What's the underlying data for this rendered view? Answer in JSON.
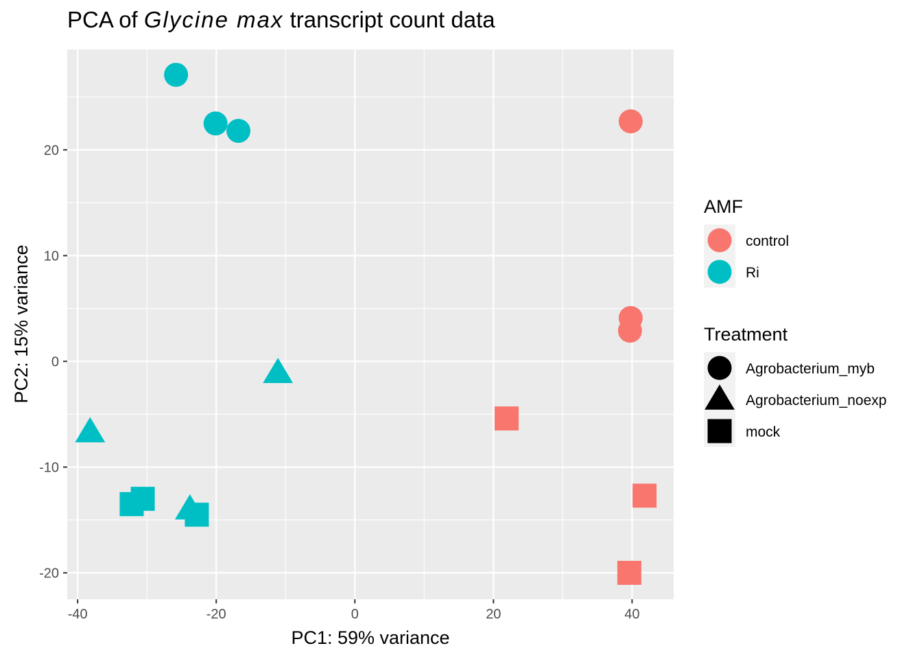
{
  "chart_data": {
    "type": "scatter",
    "title": {
      "prefix": "PCA of ",
      "italic": "Glycine max",
      "suffix": " transcript count data"
    },
    "xlabel": "PC1: 59% variance",
    "ylabel": "PC2: 15% variance",
    "xlim": [
      -41.5,
      46
    ],
    "ylim": [
      -22.5,
      29.5
    ],
    "x_ticks": [
      -40,
      -20,
      0,
      20,
      40
    ],
    "x_tick_labels": [
      "-40",
      "-20",
      "0",
      "20",
      "40"
    ],
    "y_ticks": [
      -20,
      -10,
      0,
      10,
      20
    ],
    "y_tick_labels": [
      "-20",
      "-10",
      "0",
      "10",
      "20"
    ],
    "grid": true,
    "panel_background": "#ebebeb",
    "legend_position": "right",
    "colors": {
      "control": "#f8766d",
      "Ri": "#00bfc4"
    },
    "legends": [
      {
        "title": "AMF",
        "type": "color",
        "entries": [
          {
            "label": "control",
            "color": "#f8766d"
          },
          {
            "label": "Ri",
            "color": "#00bfc4"
          }
        ]
      },
      {
        "title": "Treatment",
        "type": "shape",
        "entries": [
          {
            "label": "Agrobacterium_myb",
            "shape": "circle"
          },
          {
            "label": "Agrobacterium_noexp",
            "shape": "triangle"
          },
          {
            "label": "mock",
            "shape": "square"
          }
        ]
      }
    ],
    "points": [
      {
        "x": -25.8,
        "y": 27.1,
        "amf": "Ri",
        "treatment": "Agrobacterium_myb"
      },
      {
        "x": -20.1,
        "y": 22.5,
        "amf": "Ri",
        "treatment": "Agrobacterium_myb"
      },
      {
        "x": -16.8,
        "y": 21.8,
        "amf": "Ri",
        "treatment": "Agrobacterium_myb"
      },
      {
        "x": -11.1,
        "y": -1.1,
        "amf": "Ri",
        "treatment": "Agrobacterium_noexp"
      },
      {
        "x": -38.2,
        "y": -6.7,
        "amf": "Ri",
        "treatment": "Agrobacterium_noexp"
      },
      {
        "x": -23.8,
        "y": -14.0,
        "amf": "Ri",
        "treatment": "Agrobacterium_noexp"
      },
      {
        "x": -32.2,
        "y": -13.5,
        "amf": "Ri",
        "treatment": "mock"
      },
      {
        "x": -30.6,
        "y": -13.0,
        "amf": "Ri",
        "treatment": "mock"
      },
      {
        "x": -22.8,
        "y": -14.5,
        "amf": "Ri",
        "treatment": "mock"
      },
      {
        "x": 39.8,
        "y": 22.7,
        "amf": "control",
        "treatment": "Agrobacterium_myb"
      },
      {
        "x": 39.8,
        "y": 4.1,
        "amf": "control",
        "treatment": "Agrobacterium_myb"
      },
      {
        "x": 39.7,
        "y": 2.9,
        "amf": "control",
        "treatment": "Agrobacterium_myb"
      },
      {
        "x": 21.9,
        "y": -5.4,
        "amf": "control",
        "treatment": "mock"
      },
      {
        "x": 41.8,
        "y": -12.7,
        "amf": "control",
        "treatment": "mock"
      },
      {
        "x": 39.6,
        "y": -20.0,
        "amf": "control",
        "treatment": "mock"
      }
    ]
  }
}
